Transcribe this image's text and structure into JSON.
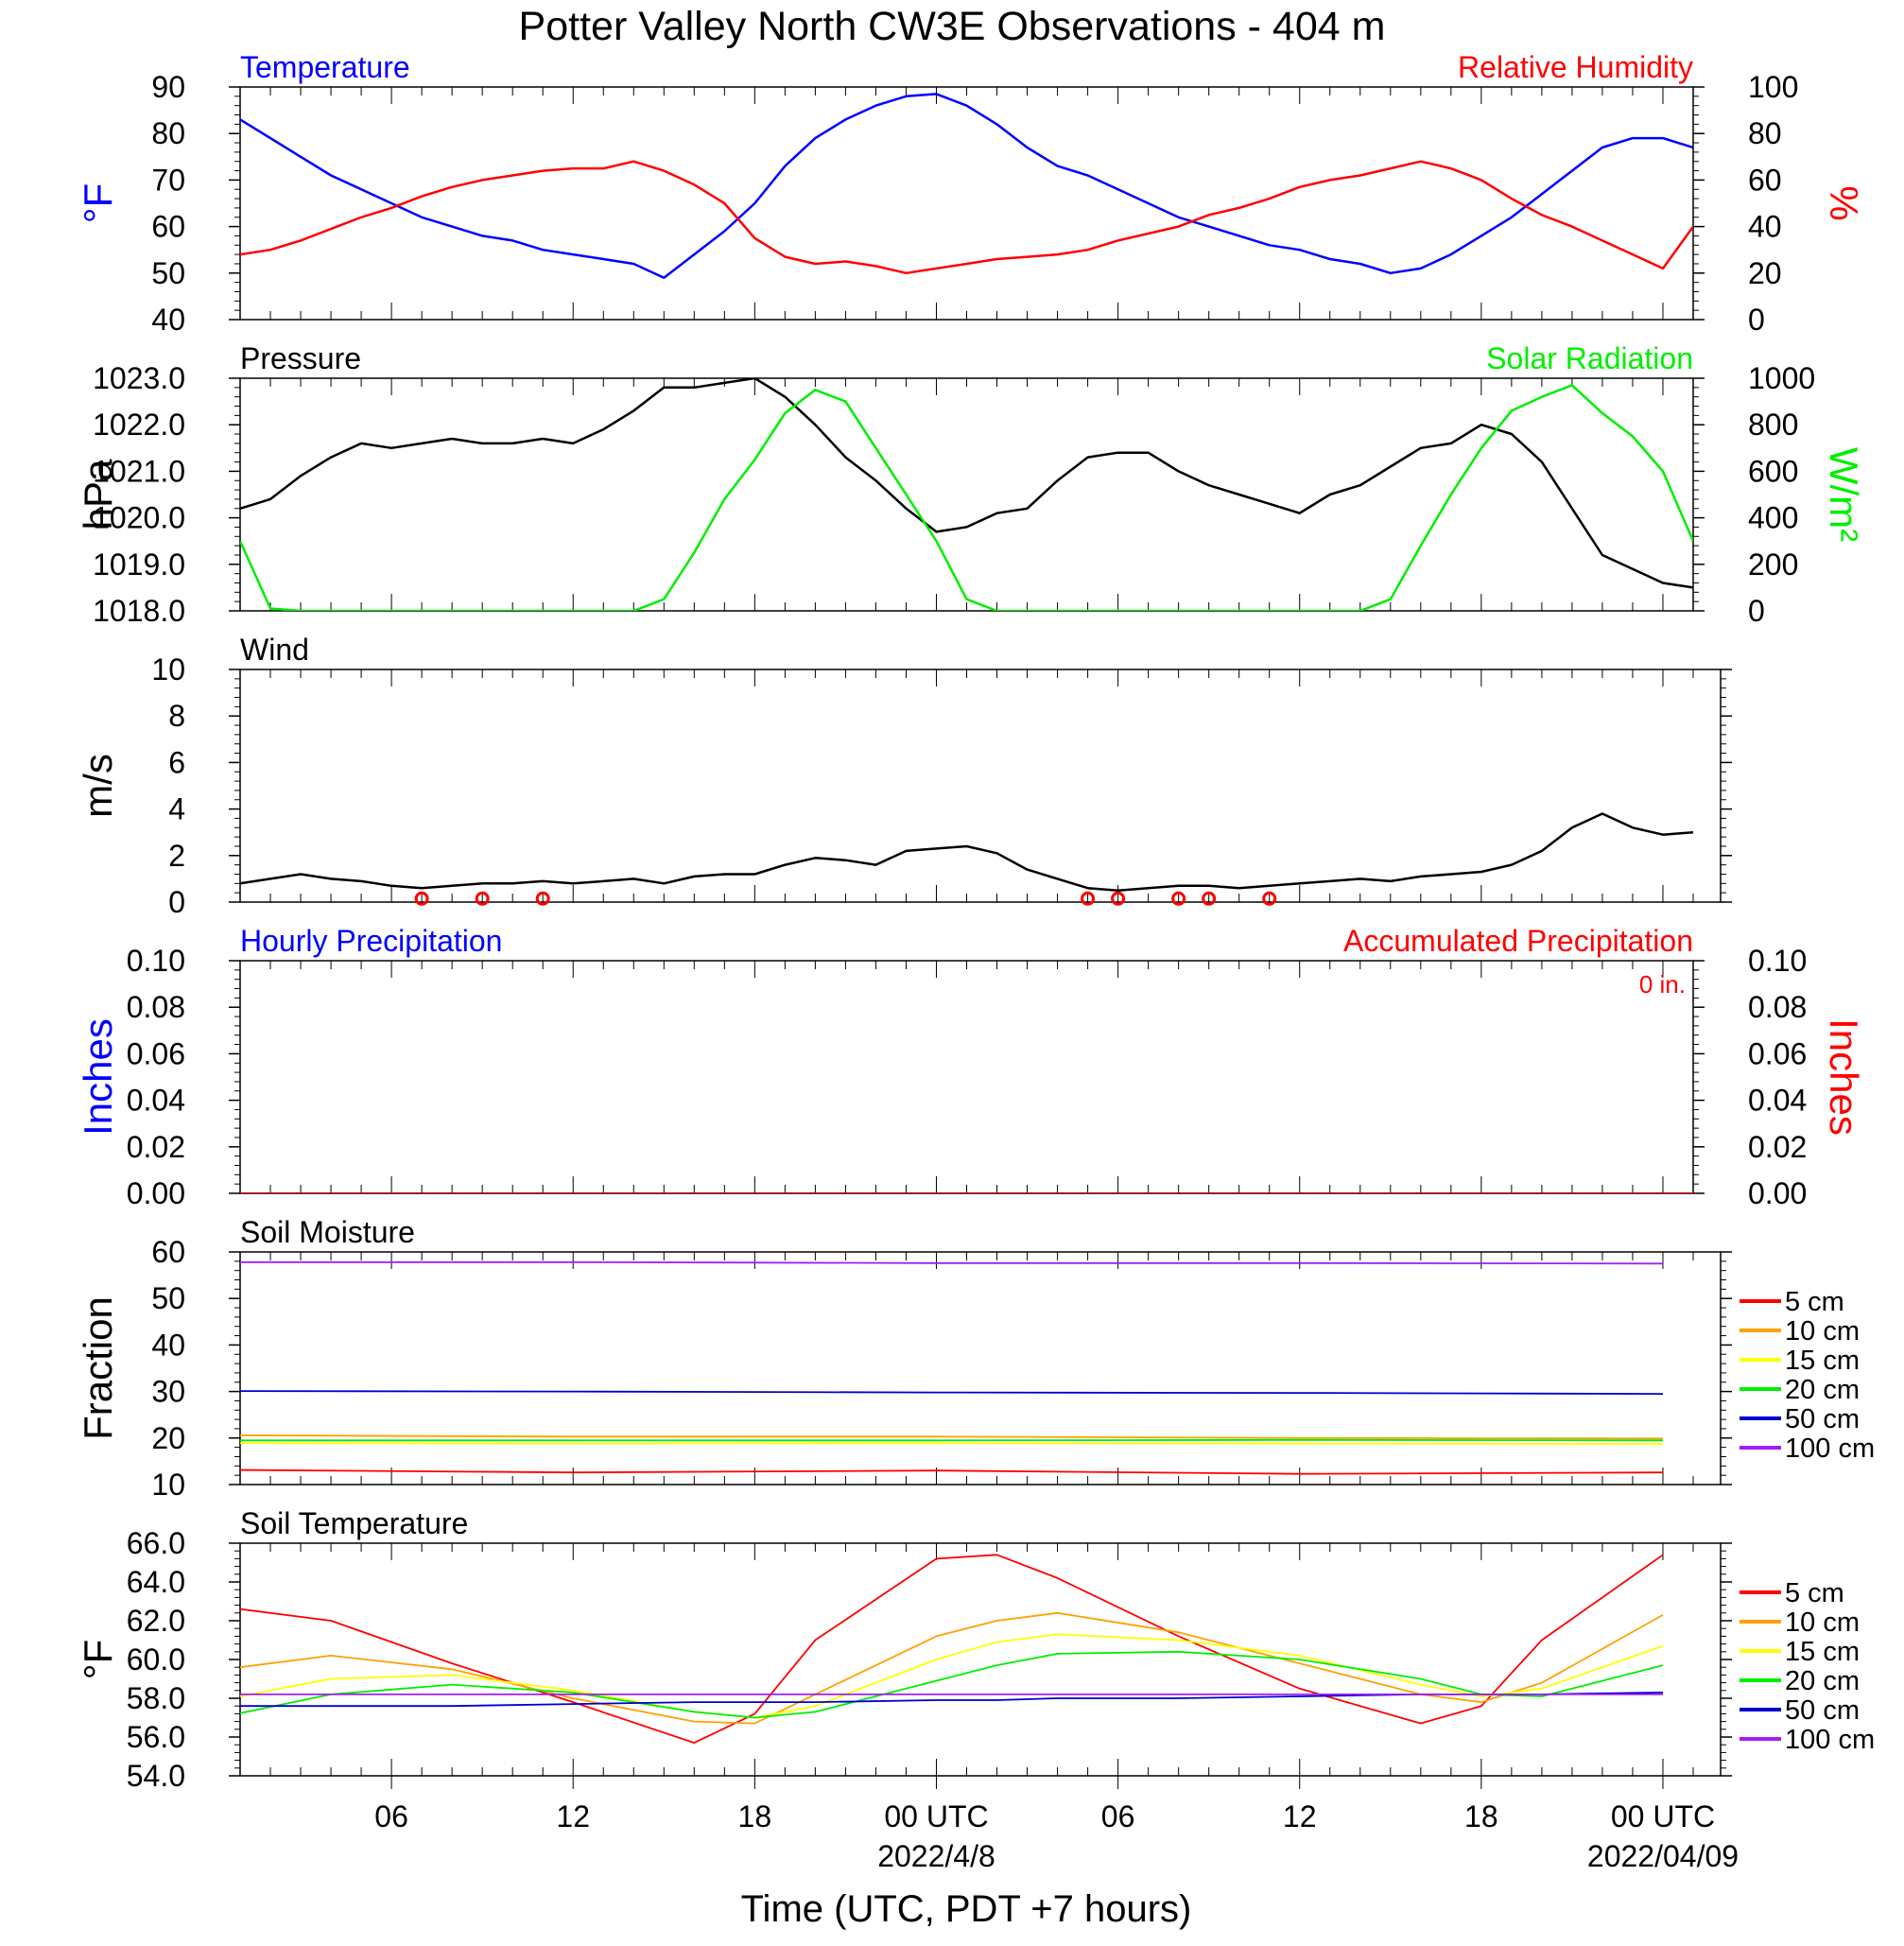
{
  "title": "Potter Valley North CW3E Observations - 404 m",
  "xaxis": {
    "label": "Time (UTC, PDT +7 hours)",
    "ticks": [
      "06",
      "12",
      "18",
      "00 UTC",
      "06",
      "12",
      "18",
      "00 UTC"
    ],
    "dates": [
      "2022/4/8",
      "2022/04/09"
    ]
  },
  "colors": {
    "blue": "#0000ff",
    "red": "#ff0000",
    "green": "#00ee00",
    "black": "#000000",
    "orange": "#ffa000",
    "yellow": "#ffff00",
    "darkblue": "#0000cd",
    "purple": "#a020f0"
  },
  "chart_data": [
    {
      "type": "line",
      "title_left": "Temperature",
      "title_right": "Relative Humidity",
      "ylabel_left": "°F",
      "ylabel_right": "%",
      "ylim_left": [
        40,
        90
      ],
      "ylim_right": [
        0,
        100
      ],
      "yticks_left": [
        "90",
        "80",
        "70",
        "60",
        "50",
        "40"
      ],
      "yticks_right": [
        "100",
        "80",
        "60",
        "40",
        "20",
        "0"
      ],
      "x_hours": [
        1,
        2,
        3,
        4,
        5,
        6,
        7,
        8,
        9,
        10,
        11,
        12,
        13,
        14,
        15,
        16,
        17,
        18,
        19,
        20,
        21,
        22,
        23,
        24,
        25,
        26,
        27,
        28,
        29,
        30,
        31,
        32,
        33,
        34,
        35,
        36,
        37,
        38,
        39,
        40,
        41,
        42,
        43,
        44,
        45,
        46,
        47,
        48,
        49
      ],
      "series": [
        {
          "name": "Temperature",
          "axis": "left",
          "color": "blue",
          "values": [
            83,
            79,
            75,
            71,
            68,
            65,
            62,
            60,
            58,
            57,
            55,
            54,
            53,
            52,
            49,
            54,
            59,
            65,
            73,
            79,
            83,
            86,
            88,
            88.5,
            86,
            82,
            77,
            73,
            71,
            68,
            65,
            62,
            60,
            58,
            56,
            55,
            53,
            52,
            50,
            51,
            54,
            58,
            62,
            67,
            72,
            77,
            79,
            79,
            77
          ]
        },
        {
          "name": "Relative Humidity",
          "axis": "right",
          "color": "red",
          "values": [
            28,
            30,
            34,
            39,
            44,
            48,
            53,
            57,
            60,
            62,
            64,
            65,
            65,
            68,
            64,
            58,
            50,
            35,
            27,
            24,
            25,
            23,
            20,
            22,
            24,
            26,
            27,
            28,
            30,
            34,
            37,
            40,
            45,
            48,
            52,
            57,
            60,
            62,
            65,
            68,
            65,
            60,
            52,
            45,
            40,
            34,
            28,
            22,
            40
          ]
        }
      ]
    },
    {
      "type": "line",
      "title_left": "Pressure",
      "title_right": "Solar Radiation",
      "ylabel_left": "hPa",
      "ylabel_right": "W/m²",
      "ylim_left": [
        1018,
        1023
      ],
      "ylim_right": [
        0,
        1000
      ],
      "yticks_left": [
        "1023.0",
        "1022.0",
        "1021.0",
        "1020.0",
        "1019.0",
        "1018.0"
      ],
      "yticks_right": [
        "1000",
        "800",
        "600",
        "400",
        "200",
        "0"
      ],
      "x_hours": [
        1,
        2,
        3,
        4,
        5,
        6,
        7,
        8,
        9,
        10,
        11,
        12,
        13,
        14,
        15,
        16,
        17,
        18,
        19,
        20,
        21,
        22,
        23,
        24,
        25,
        26,
        27,
        28,
        29,
        30,
        31,
        32,
        33,
        34,
        35,
        36,
        37,
        38,
        39,
        40,
        41,
        42,
        43,
        44,
        45,
        46,
        47,
        48,
        49
      ],
      "series": [
        {
          "name": "Pressure",
          "axis": "left",
          "color": "black",
          "values": [
            1020.2,
            1020.4,
            1020.9,
            1021.3,
            1021.6,
            1021.5,
            1021.6,
            1021.7,
            1021.6,
            1021.6,
            1021.7,
            1021.6,
            1021.9,
            1022.3,
            1022.8,
            1022.8,
            1022.9,
            1023.0,
            1022.6,
            1022.0,
            1021.3,
            1020.8,
            1020.2,
            1019.7,
            1019.8,
            1020.1,
            1020.2,
            1020.8,
            1021.3,
            1021.4,
            1021.4,
            1021.0,
            1020.7,
            1020.5,
            1020.3,
            1020.1,
            1020.5,
            1020.7,
            1021.1,
            1021.5,
            1021.6,
            1022.0,
            1021.8,
            1021.2,
            1020.2,
            1019.2,
            1018.9,
            1018.6,
            1018.5
          ]
        },
        {
          "name": "Solar Radiation",
          "axis": "right",
          "color": "green",
          "values": [
            300,
            10,
            0,
            0,
            0,
            0,
            0,
            0,
            0,
            0,
            0,
            0,
            0,
            0,
            50,
            250,
            480,
            650,
            850,
            950,
            900,
            700,
            500,
            300,
            50,
            0,
            0,
            0,
            0,
            0,
            0,
            0,
            0,
            0,
            0,
            0,
            0,
            0,
            50,
            280,
            500,
            700,
            860,
            920,
            970,
            850,
            750,
            600,
            300
          ]
        }
      ]
    },
    {
      "type": "line",
      "title_left": "Wind",
      "ylabel_left": "m/s",
      "ylim_left": [
        0,
        10
      ],
      "yticks_left": [
        "10",
        "8",
        "6",
        "4",
        "2",
        "0"
      ],
      "x_hours": [
        1,
        2,
        3,
        4,
        5,
        6,
        7,
        8,
        9,
        10,
        11,
        12,
        13,
        14,
        15,
        16,
        17,
        18,
        19,
        20,
        21,
        22,
        23,
        24,
        25,
        26,
        27,
        28,
        29,
        30,
        31,
        32,
        33,
        34,
        35,
        36,
        37,
        38,
        39,
        40,
        41,
        42,
        43,
        44,
        45,
        46,
        47,
        48,
        49
      ],
      "series": [
        {
          "name": "Wind",
          "axis": "left",
          "color": "black",
          "values": [
            0.8,
            1.0,
            1.2,
            1.0,
            0.9,
            0.7,
            0.6,
            0.7,
            0.8,
            0.8,
            0.9,
            0.8,
            0.9,
            1.0,
            0.8,
            1.1,
            1.2,
            1.2,
            1.6,
            1.9,
            1.8,
            1.6,
            2.2,
            2.3,
            2.4,
            2.1,
            1.4,
            1.0,
            0.6,
            0.5,
            0.6,
            0.7,
            0.7,
            0.6,
            0.7,
            0.8,
            0.9,
            1.0,
            0.9,
            1.1,
            1.2,
            1.3,
            1.6,
            2.2,
            3.2,
            3.8,
            3.2,
            2.9,
            3.0
          ]
        }
      ],
      "calm_markers_hours": [
        7,
        9,
        11,
        29,
        30,
        32,
        33,
        35
      ]
    },
    {
      "type": "line",
      "title_left": "Hourly Precipitation",
      "title_right": "Accumulated Precipitation",
      "annotation": "0 in.",
      "ylabel_left": "Inches",
      "ylabel_right": "Inches",
      "ylim_left": [
        0,
        0.1
      ],
      "ylim_right": [
        0,
        0.1
      ],
      "yticks_left": [
        "0.10",
        "0.08",
        "0.06",
        "0.04",
        "0.02",
        "0.00"
      ],
      "yticks_right": [
        "0.10",
        "0.08",
        "0.06",
        "0.04",
        "0.02",
        "0.00"
      ],
      "x_hours": [
        0,
        49
      ],
      "series": [
        {
          "name": "Hourly Precipitation",
          "axis": "left",
          "color": "blue",
          "values": [
            0,
            0
          ]
        },
        {
          "name": "Accumulated Precipitation",
          "axis": "right",
          "color": "red",
          "values": [
            0,
            0
          ]
        }
      ]
    },
    {
      "type": "line",
      "title_left": "Soil Moisture",
      "ylabel_left": "Fraction",
      "ylim_left": [
        10,
        60
      ],
      "yticks_left": [
        "60",
        "50",
        "40",
        "30",
        "20",
        "10"
      ],
      "legend": [
        "5 cm",
        "10 cm",
        "15 cm",
        "20 cm",
        "50 cm",
        "100 cm"
      ],
      "x_hours": [
        0,
        12,
        24,
        36,
        48
      ],
      "series": [
        {
          "name": "5 cm",
          "color": "red",
          "values": [
            13.2,
            12.6,
            13.0,
            12.3,
            12.6
          ]
        },
        {
          "name": "10 cm",
          "color": "orange",
          "values": [
            20.6,
            20.3,
            20.3,
            20.0,
            19.9
          ]
        },
        {
          "name": "15 cm",
          "color": "yellow",
          "values": [
            18.9,
            18.8,
            18.9,
            18.8,
            18.7
          ]
        },
        {
          "name": "20 cm",
          "color": "green",
          "values": [
            19.5,
            19.5,
            19.5,
            19.6,
            19.5
          ]
        },
        {
          "name": "50 cm",
          "color": "darkblue",
          "values": [
            30.1,
            30.0,
            29.8,
            29.7,
            29.5
          ]
        },
        {
          "name": "100 cm",
          "color": "purple",
          "values": [
            57.8,
            57.8,
            57.6,
            57.6,
            57.5
          ]
        }
      ]
    },
    {
      "type": "line",
      "title_left": "Soil Temperature",
      "ylabel_left": "°F",
      "ylim_left": [
        54,
        66
      ],
      "yticks_left": [
        "66.0",
        "64.0",
        "62.0",
        "60.0",
        "58.0",
        "56.0",
        "54.0"
      ],
      "legend": [
        "5 cm",
        "10 cm",
        "15 cm",
        "20 cm",
        "50 cm",
        "100 cm"
      ],
      "x_hours": [
        0,
        4,
        8,
        12,
        16,
        18,
        20,
        24,
        26,
        28,
        32,
        36,
        40,
        42,
        44,
        48
      ],
      "series": [
        {
          "name": "5 cm",
          "color": "red",
          "values": [
            62.8,
            62.0,
            59.8,
            57.8,
            55.7,
            57.2,
            61.0,
            65.2,
            65.4,
            64.2,
            61.2,
            58.5,
            56.7,
            57.6,
            61.0,
            65.4
          ]
        },
        {
          "name": "10 cm",
          "color": "orange",
          "values": [
            59.4,
            60.2,
            59.5,
            58.0,
            56.8,
            56.7,
            58.2,
            61.2,
            62.0,
            62.4,
            61.4,
            59.8,
            58.2,
            57.8,
            58.8,
            62.3
          ]
        },
        {
          "name": "15 cm",
          "color": "yellow",
          "values": [
            57.8,
            59.0,
            59.2,
            58.4,
            57.3,
            57.0,
            57.6,
            60.0,
            60.9,
            61.3,
            61.0,
            60.2,
            58.7,
            58.1,
            58.5,
            60.7
          ]
        },
        {
          "name": "20 cm",
          "color": "green",
          "values": [
            56.9,
            58.2,
            58.7,
            58.3,
            57.3,
            57.0,
            57.3,
            58.9,
            59.7,
            60.3,
            60.4,
            60.0,
            59.0,
            58.2,
            58.1,
            59.7
          ]
        },
        {
          "name": "50 cm",
          "color": "darkblue",
          "values": [
            57.6,
            57.6,
            57.6,
            57.7,
            57.8,
            57.8,
            57.8,
            57.9,
            57.9,
            58.0,
            58.0,
            58.1,
            58.2,
            58.2,
            58.2,
            58.3
          ]
        },
        {
          "name": "100 cm",
          "color": "purple",
          "values": [
            58.2,
            58.2,
            58.2,
            58.2,
            58.2,
            58.2,
            58.2,
            58.2,
            58.2,
            58.2,
            58.2,
            58.2,
            58.2,
            58.2,
            58.2,
            58.2
          ]
        }
      ]
    }
  ]
}
